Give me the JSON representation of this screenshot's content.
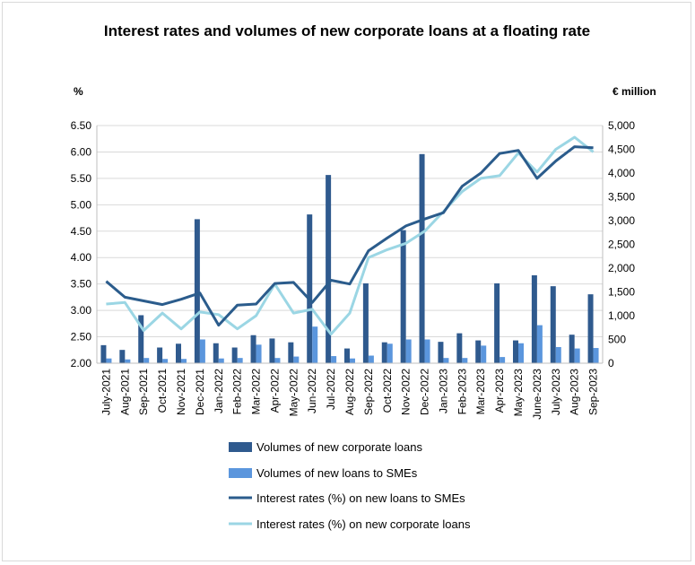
{
  "chart_data": {
    "type": "bar+line",
    "title": "Interest rates and volumes of new corporate loans at a floating rate",
    "y_left_label": "%",
    "y_right_label": "€ million",
    "y_left_range": [
      2.0,
      6.5
    ],
    "y_left_ticks": [
      "2.00",
      "2.50",
      "3.00",
      "3.50",
      "4.00",
      "4.50",
      "5.00",
      "5.50",
      "6.00",
      "6.50"
    ],
    "y_right_range": [
      0,
      5000
    ],
    "y_right_ticks": [
      "0",
      "500",
      "1,000",
      "1,500",
      "2,000",
      "2,500",
      "3,000",
      "3,500",
      "4,000",
      "4,500",
      "5,000"
    ],
    "categories": [
      "July-2021",
      "Aug-2021",
      "Sep-2021",
      "Oct-2021",
      "Nov-2021",
      "Dec-2021",
      "Jan-2022",
      "Feb-2022",
      "Mar-2022",
      "Apr-2022",
      "May-2022",
      "Jun-2022",
      "Jul-2022",
      "Aug-2022",
      "Sep-2022",
      "Oct-2022",
      "Nov-2022",
      "Dec-2022",
      "Jan-2023",
      "Feb-2023",
      "Mar-2023",
      "Apr-2023",
      "May-2023",
      "June-2023",
      "July-2023",
      "Aug-2023",
      "Sep-2023"
    ],
    "series": [
      {
        "name": "Volumes of new corporate loans",
        "type": "bar",
        "axis": "right",
        "color": "#2f5a8e",
        "values": [
          380,
          280,
          1010,
          330,
          410,
          3030,
          420,
          330,
          590,
          520,
          440,
          3130,
          3960,
          310,
          1680,
          440,
          2800,
          4400,
          450,
          630,
          480,
          1680,
          480,
          1850,
          1620,
          600,
          1450
        ]
      },
      {
        "name": "Volumes of new loans to SMEs",
        "type": "bar",
        "axis": "right",
        "color": "#5b96dd",
        "values": [
          100,
          80,
          110,
          90,
          90,
          500,
          100,
          110,
          390,
          110,
          140,
          770,
          150,
          100,
          160,
          410,
          500,
          500,
          110,
          110,
          370,
          130,
          420,
          800,
          340,
          310,
          320
        ]
      },
      {
        "name": "Interest rates (%) on new loans to SMEs",
        "type": "line",
        "axis": "left",
        "color": "#2b5c8c",
        "values": [
          3.55,
          3.25,
          3.18,
          3.11,
          3.21,
          3.33,
          2.72,
          3.1,
          3.12,
          3.51,
          3.53,
          3.15,
          3.57,
          3.5,
          4.13,
          4.37,
          4.6,
          4.73,
          4.85,
          5.35,
          5.6,
          5.97,
          6.03,
          5.5,
          5.83,
          6.1,
          6.08
        ]
      },
      {
        "name": "Interest rates (%) on new corporate loans",
        "type": "line",
        "axis": "left",
        "color": "#9bd6e4",
        "values": [
          3.12,
          3.15,
          2.62,
          2.95,
          2.65,
          2.97,
          2.92,
          2.65,
          2.9,
          3.5,
          2.95,
          3.02,
          2.55,
          2.95,
          4.0,
          4.15,
          4.27,
          4.5,
          4.87,
          5.25,
          5.5,
          5.55,
          5.98,
          5.62,
          6.05,
          6.28,
          6.0
        ]
      }
    ],
    "legend_position": "bottom",
    "grid": true
  }
}
